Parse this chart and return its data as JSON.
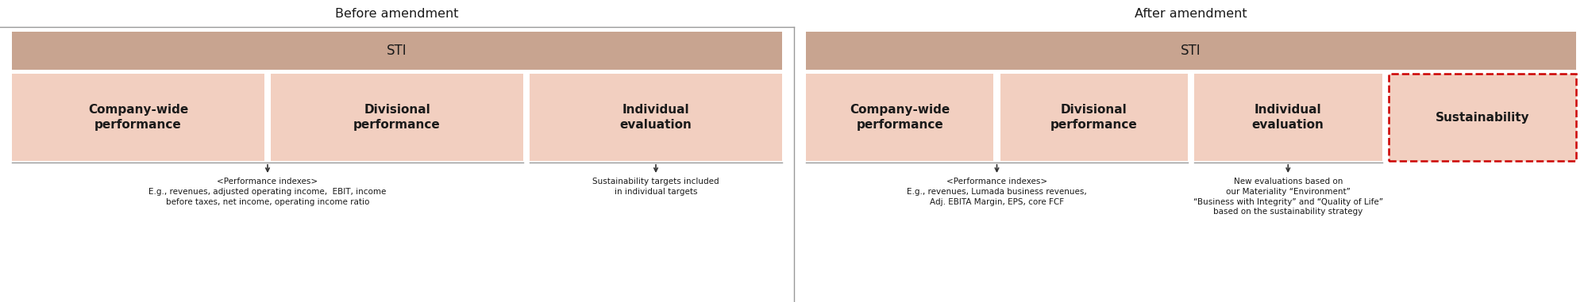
{
  "fig_width": 20.0,
  "fig_height": 3.81,
  "dpi": 100,
  "bg_color": "#ffffff",
  "sti_box_color": "#c8a490",
  "cell_box_color": "#f2cfc0",
  "sustainability_border_color": "#cc0000",
  "divider_color": "#999999",
  "text_color": "#1a1a1a",
  "before_title": "Before amendment",
  "after_title": "After amendment",
  "sti_label": "STI",
  "before_cells": [
    "Company-wide\nperformance",
    "Divisional\nperformance",
    "Individual\nevaluation"
  ],
  "after_cells": [
    "Company-wide\nperformance",
    "Divisional\nperformance",
    "Individual\nevaluation",
    "Sustainability"
  ],
  "before_note_left": "<Performance indexes>\nE.g., revenues, adjusted operating income,  EBIT, income\nbefore taxes, net income, operating income ratio",
  "before_note_right": "Sustainability targets included\nin individual targets",
  "after_note_left": "<Performance indexes>\nE.g., revenues, Lumada business revenues,\nAdj. EBITA Margin, EPS, core FCF",
  "after_note_right": "New evaluations based on\nour Materiality “Environment”\n“Business with Integrity” and “Quality of Life”\nbased on the sustainability strategy"
}
